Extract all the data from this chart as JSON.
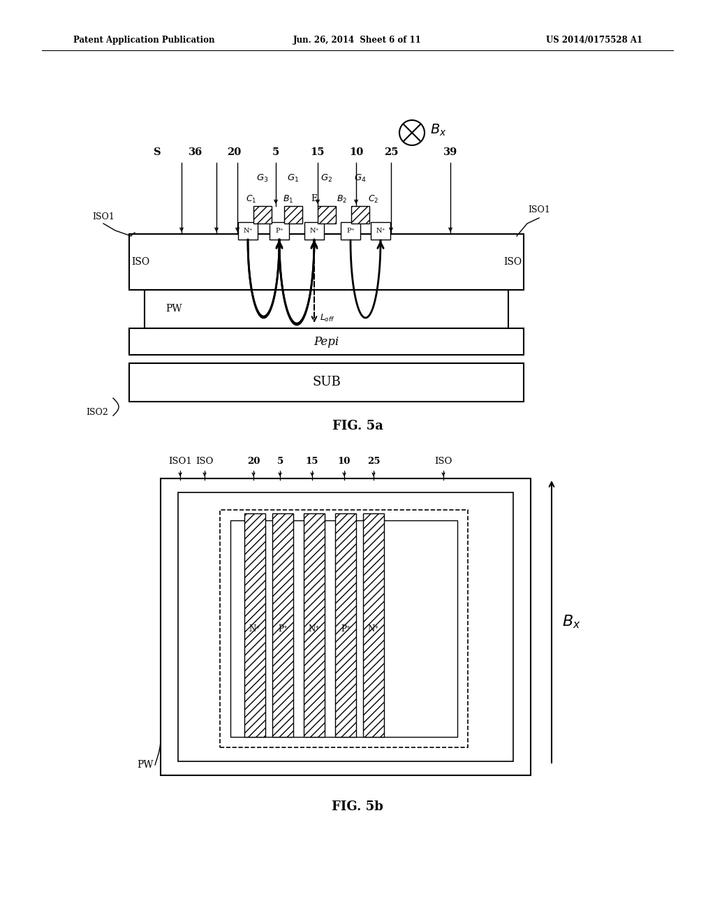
{
  "title_left": "Patent Application Publication",
  "title_center": "Jun. 26, 2014  Sheet 6 of 11",
  "title_right": "US 2014/0175528 A1",
  "fig5a_caption": "FIG. 5a",
  "fig5b_caption": "FIG. 5b",
  "bg_color": "#ffffff",
  "lc": "#000000"
}
